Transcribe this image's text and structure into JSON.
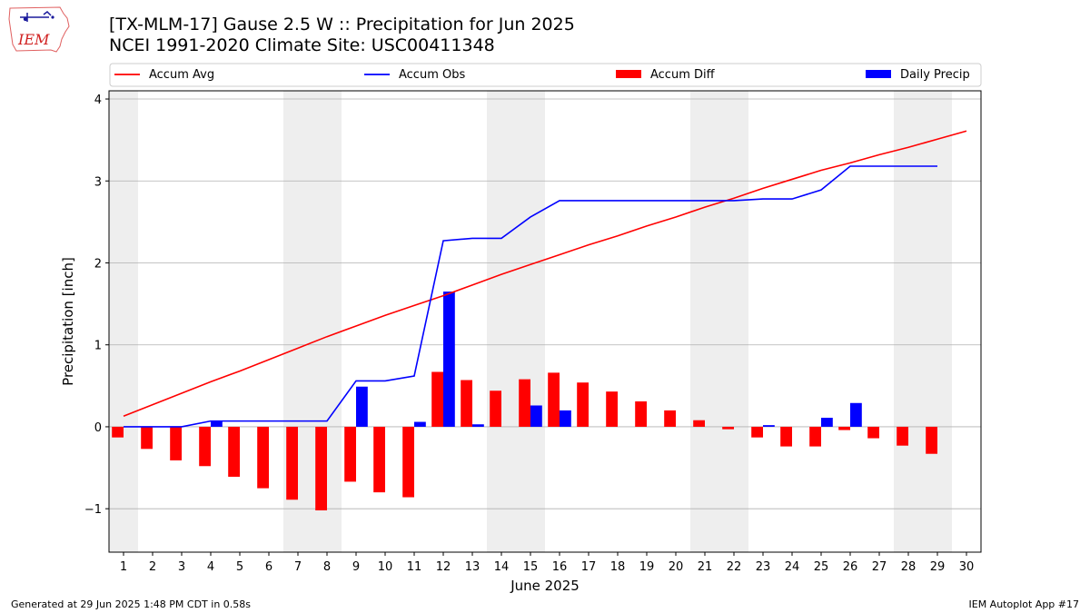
{
  "header": {
    "title_line1": "[TX-MLM-17] Gause 2.5 W :: Precipitation for Jun 2025",
    "title_line2": "NCEI 1991-2020 Climate Site: USC00411348",
    "logo_text": "IEM"
  },
  "footer": {
    "generated": "Generated at 29 Jun 2025 1:48 PM CDT in 0.58s",
    "app": "IEM Autoplot App #17"
  },
  "chart_data": {
    "type": "bar",
    "xlabel": "June 2025",
    "ylabel": "Precipitation [inch]",
    "ylim": [
      -1.53,
      4.1
    ],
    "yticks": [
      -1,
      0,
      1,
      2,
      3,
      4
    ],
    "ytick_labels": [
      "−1",
      "0",
      "1",
      "2",
      "3",
      "4"
    ],
    "xlim": [
      0.5,
      30.5
    ],
    "days": [
      1,
      2,
      3,
      4,
      5,
      6,
      7,
      8,
      9,
      10,
      11,
      12,
      13,
      14,
      15,
      16,
      17,
      18,
      19,
      20,
      21,
      22,
      23,
      24,
      25,
      26,
      27,
      28,
      29,
      30
    ],
    "weekend_bands": [
      [
        0.5,
        1.5
      ],
      [
        6.5,
        8.5
      ],
      [
        13.5,
        15.5
      ],
      [
        20.5,
        22.5
      ],
      [
        27.5,
        29.5
      ]
    ],
    "grid": true,
    "legend_placement": "top, above plot",
    "colors": {
      "avg": "#ff0000",
      "obs": "#0000ff",
      "diff": "#ff0000",
      "daily": "#0000ff",
      "band": "#eeeeee",
      "grid": "#b0b0b0"
    },
    "series": [
      {
        "name": "Accum Avg",
        "kind": "line",
        "x": [
          1,
          2,
          3,
          4,
          5,
          6,
          7,
          8,
          9,
          10,
          11,
          12,
          13,
          14,
          15,
          16,
          17,
          18,
          19,
          20,
          21,
          22,
          23,
          24,
          25,
          26,
          27,
          28,
          29,
          30
        ],
        "values": [
          0.13,
          0.27,
          0.41,
          0.55,
          0.68,
          0.82,
          0.96,
          1.1,
          1.23,
          1.36,
          1.48,
          1.6,
          1.73,
          1.86,
          1.98,
          2.1,
          2.22,
          2.33,
          2.45,
          2.56,
          2.68,
          2.79,
          2.91,
          3.02,
          3.13,
          3.22,
          3.32,
          3.41,
          3.51,
          3.61
        ]
      },
      {
        "name": "Accum Obs",
        "kind": "line",
        "x": [
          1,
          2,
          3,
          4,
          5,
          6,
          7,
          8,
          9,
          10,
          11,
          12,
          13,
          14,
          15,
          16,
          17,
          18,
          19,
          20,
          21,
          22,
          23,
          24,
          25,
          26,
          27,
          28,
          29
        ],
        "values": [
          0,
          0,
          0,
          0.07,
          0.07,
          0.07,
          0.07,
          0.07,
          0.56,
          0.56,
          0.62,
          2.27,
          2.3,
          2.3,
          2.56,
          2.76,
          2.76,
          2.76,
          2.76,
          2.76,
          2.76,
          2.76,
          2.78,
          2.78,
          2.89,
          3.18,
          3.18,
          3.18,
          3.18
        ]
      },
      {
        "name": "Accum Diff",
        "kind": "bar",
        "x": [
          1,
          2,
          3,
          4,
          5,
          6,
          7,
          8,
          9,
          10,
          11,
          12,
          13,
          14,
          15,
          16,
          17,
          18,
          19,
          20,
          21,
          22,
          23,
          24,
          25,
          26,
          27,
          28,
          29
        ],
        "values": [
          -0.13,
          -0.27,
          -0.41,
          -0.48,
          -0.61,
          -0.75,
          -0.89,
          -1.02,
          -0.67,
          -0.8,
          -0.86,
          0.67,
          0.57,
          0.44,
          0.58,
          0.66,
          0.54,
          0.43,
          0.31,
          0.2,
          0.08,
          -0.03,
          -0.13,
          -0.24,
          -0.24,
          -0.04,
          -0.14,
          -0.23,
          -0.33
        ]
      },
      {
        "name": "Daily Precip",
        "kind": "bar",
        "x": [
          4,
          9,
          11,
          12,
          13,
          15,
          16,
          23,
          25,
          26
        ],
        "values": [
          0.07,
          0.49,
          0.06,
          1.65,
          0.03,
          0.26,
          0.2,
          0.02,
          0.11,
          0.29
        ]
      }
    ]
  }
}
